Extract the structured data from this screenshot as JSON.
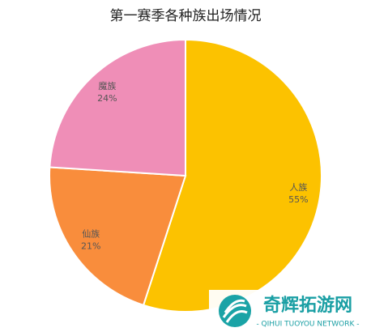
{
  "chart_data": {
    "type": "pie",
    "title": "第一赛季各种族出场情况",
    "categories": [
      "人族",
      "仙族",
      "魔族"
    ],
    "values": [
      55,
      21,
      24
    ],
    "value_labels": [
      "55%",
      "21%",
      "24%"
    ],
    "colors": [
      "#fcc200",
      "#f98d3c",
      "#ef8eb7"
    ]
  },
  "watermark": {
    "title": "奇辉拓游网",
    "subtitle": "- QIHUI TUOYOU NETWORK -"
  }
}
